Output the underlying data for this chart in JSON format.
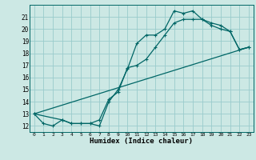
{
  "title": "",
  "xlabel": "Humidex (Indice chaleur)",
  "bg_color": "#cce8e4",
  "line_color": "#006666",
  "grid_color": "#99cccc",
  "xlim": [
    -0.5,
    23.5
  ],
  "ylim": [
    11.5,
    22.0
  ],
  "xticks": [
    0,
    1,
    2,
    3,
    4,
    5,
    6,
    7,
    8,
    9,
    10,
    11,
    12,
    13,
    14,
    15,
    16,
    17,
    18,
    19,
    20,
    21,
    22,
    23
  ],
  "yticks": [
    12,
    13,
    14,
    15,
    16,
    17,
    18,
    19,
    20,
    21
  ],
  "line1_x": [
    0,
    1,
    2,
    3,
    4,
    5,
    6,
    7,
    8,
    9,
    10,
    11,
    12,
    13,
    14,
    15,
    16,
    17,
    18,
    19,
    20,
    21,
    22,
    23
  ],
  "line1_y": [
    13.0,
    12.2,
    12.0,
    12.5,
    12.2,
    12.2,
    12.2,
    12.0,
    14.0,
    15.0,
    16.7,
    18.8,
    19.5,
    19.5,
    20.0,
    21.5,
    21.3,
    21.5,
    20.8,
    20.3,
    20.0,
    19.8,
    18.3,
    18.5
  ],
  "line2_x": [
    0,
    3,
    4,
    5,
    6,
    7,
    8,
    9,
    10,
    11,
    12,
    13,
    14,
    15,
    16,
    17,
    18,
    19,
    20,
    21,
    22,
    23
  ],
  "line2_y": [
    13.0,
    12.5,
    12.2,
    12.2,
    12.2,
    12.5,
    14.2,
    14.8,
    16.8,
    17.0,
    17.5,
    18.5,
    19.5,
    20.5,
    20.8,
    20.8,
    20.8,
    20.5,
    20.3,
    19.8,
    18.3,
    18.5
  ],
  "line3_x": [
    0,
    23
  ],
  "line3_y": [
    13.0,
    18.5
  ],
  "xtick_fontsize": 4.5,
  "ytick_fontsize": 5.5,
  "xlabel_fontsize": 6.5
}
